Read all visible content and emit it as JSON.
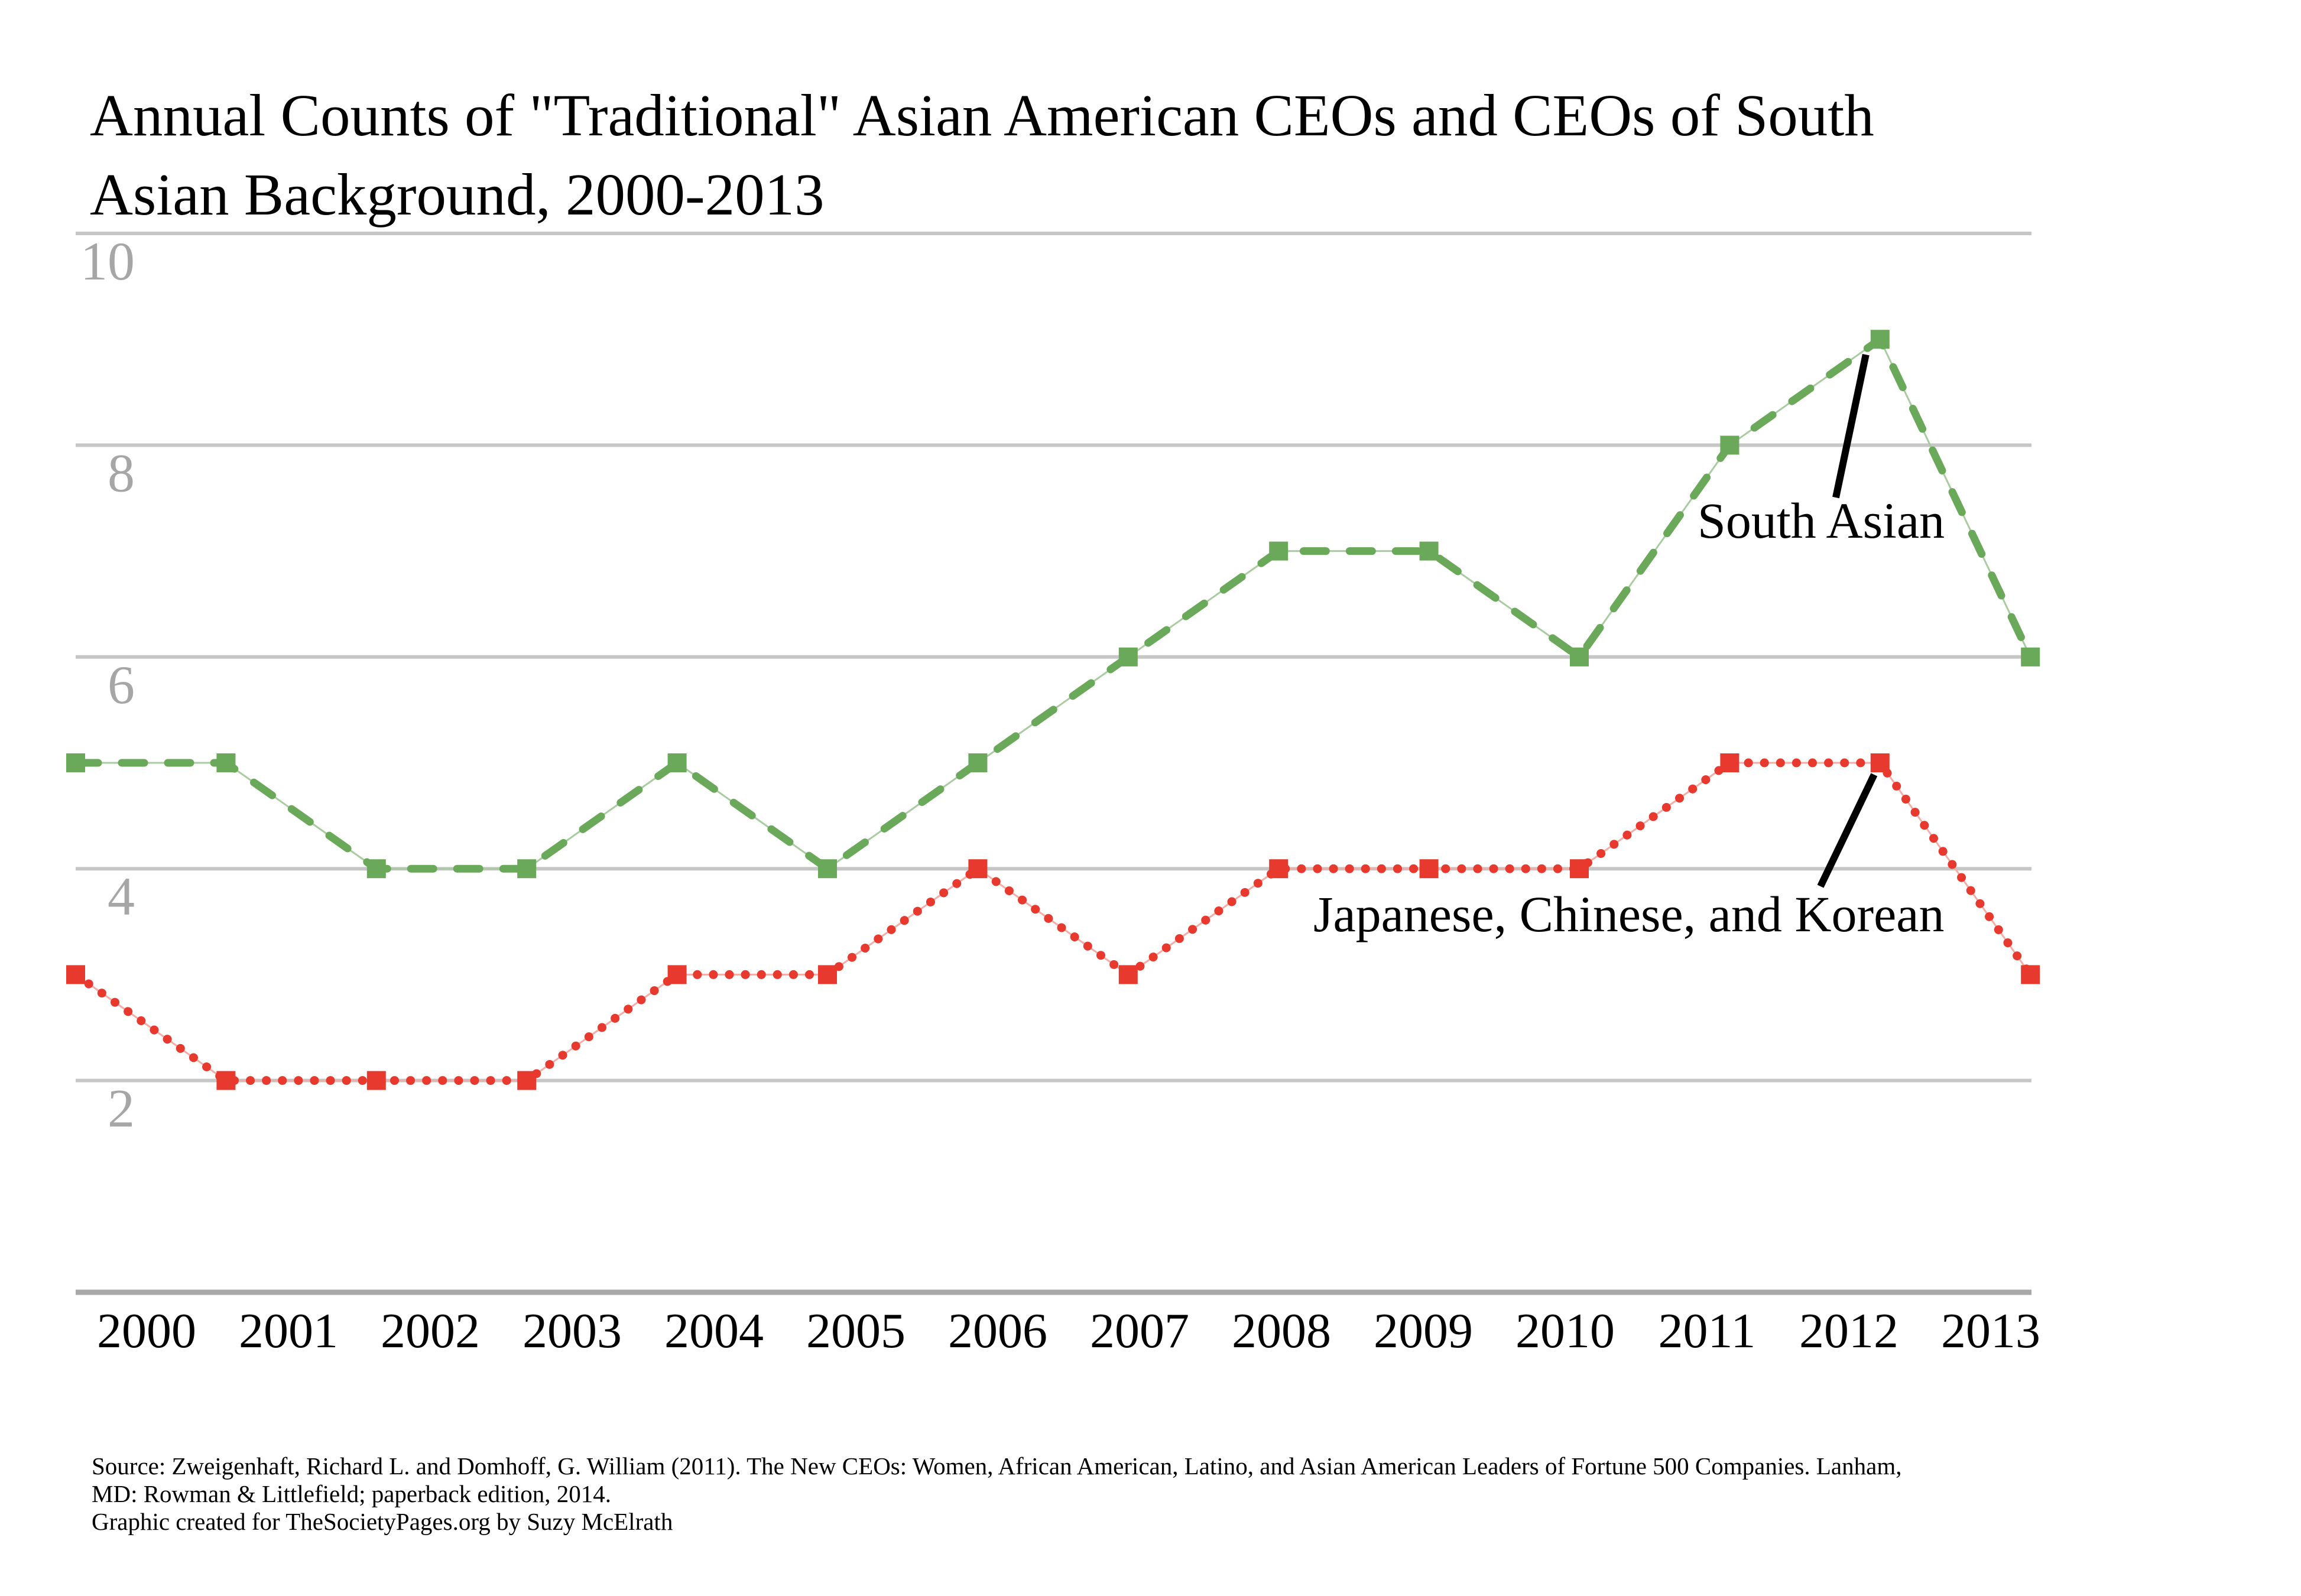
{
  "title_lines": [
    "Annual Counts of \"Traditional\" Asian American CEOs and CEOs of South",
    "Asian Background, 2000-2013"
  ],
  "chart_data": {
    "type": "line",
    "categories": [
      "2000",
      "2001",
      "2002",
      "2003",
      "2004",
      "2005",
      "2006",
      "2007",
      "2008",
      "2009",
      "2010",
      "2011",
      "2012",
      "2013"
    ],
    "series": [
      {
        "name": "South Asian",
        "color": "#6AA85A",
        "underlay_color": "#A8CCA0",
        "line_style": "dashed",
        "marker": "square",
        "values": [
          5,
          5,
          4,
          4,
          5,
          4,
          5,
          6,
          7,
          7,
          6,
          8,
          9,
          6
        ]
      },
      {
        "name": "Japanese, Chinese, and Korean",
        "color": "#E8392F",
        "underlay_color": "#F4ACA5",
        "line_style": "dotted",
        "marker": "square",
        "values": [
          3,
          2,
          2,
          2,
          3,
          3,
          4,
          3,
          4,
          4,
          4,
          5,
          5,
          3
        ]
      }
    ],
    "ylim": [
      0,
      10
    ],
    "yticks": [
      2,
      4,
      6,
      8,
      10
    ],
    "grid": "horizontal",
    "legend": "in-chart annotations with leader lines",
    "annotations": [
      {
        "text": "South Asian",
        "series": 0,
        "category": "2012",
        "value": 9
      },
      {
        "text": "Japanese, Chinese, and Korean",
        "series": 1,
        "category": "2012",
        "value": 5
      }
    ]
  },
  "colors": {
    "gridline": "#C6C6C6",
    "axis_line": "#A9A9A9",
    "y_tick_label": "#A6A6A6",
    "x_tick_label": "#000000",
    "leader_line": "#000000",
    "background": "#FFFFFF"
  },
  "source_lines": [
    "Source: Zweigenhaft, Richard L. and Domhoff, G. William (2011).  The New CEOs:  Women, African American, Latino, and Asian American Leaders of Fortune 500 Companies. Lanham,",
    "MD:  Rowman & Littlefield; paperback edition, 2014.",
    "Graphic created for TheSocietyPages.org by Suzy McElrath"
  ]
}
